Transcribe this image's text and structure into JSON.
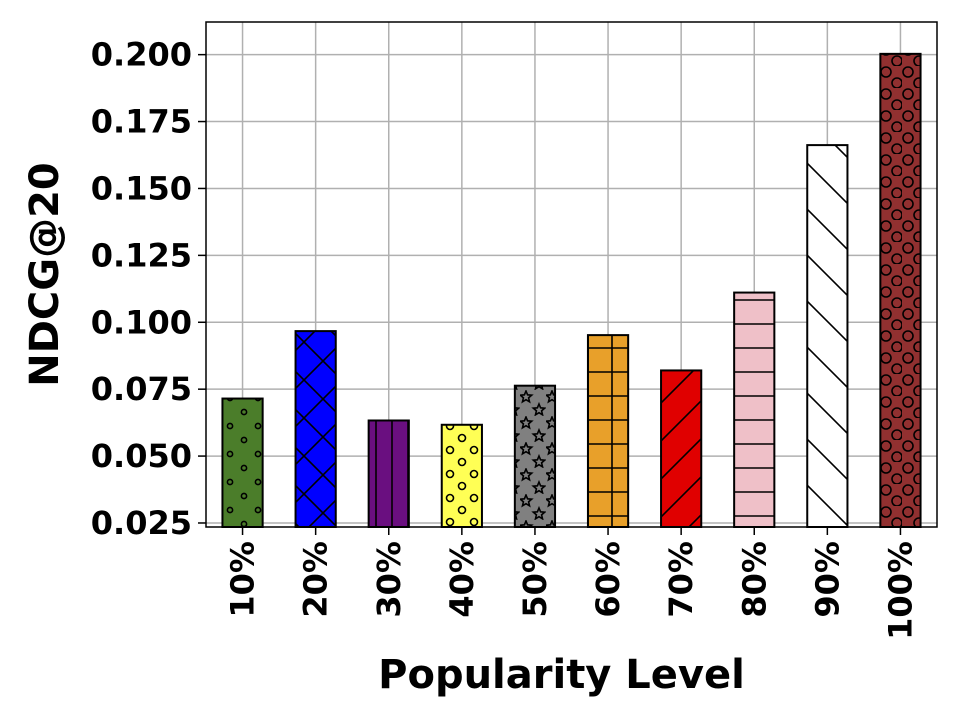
{
  "chart_data": {
    "type": "bar",
    "title": "",
    "xlabel": "Popularity Level",
    "ylabel": "NDCG@20",
    "categories": [
      "10%",
      "20%",
      "30%",
      "40%",
      "50%",
      "60%",
      "70%",
      "80%",
      "90%",
      "100%"
    ],
    "values": [
      0.0715,
      0.0967,
      0.0633,
      0.0617,
      0.0763,
      0.0952,
      0.082,
      0.1111,
      0.1662,
      0.2003
    ],
    "ylim": [
      0.0235,
      0.2122
    ],
    "yticks": [
      0.025,
      0.05,
      0.075,
      0.1,
      0.125,
      0.15,
      0.175,
      0.2
    ],
    "ytick_labels": [
      "0.025",
      "0.050",
      "0.075",
      "0.100",
      "0.125",
      "0.150",
      "0.175",
      "0.200"
    ],
    "grid": true,
    "legend": "none",
    "bar_colors": [
      "#4b7d2a",
      "#0000ff",
      "#6a0f80",
      "#ffff55",
      "#808080",
      "#e8a02a",
      "#e00000",
      "#efc0c8",
      "#ffffff",
      "#913030"
    ],
    "bar_patterns": [
      "dots",
      "cross",
      "vertical",
      "circles",
      "stars",
      "grid",
      "diagonal",
      "horizontal",
      "backslash",
      "circles-dense"
    ]
  }
}
